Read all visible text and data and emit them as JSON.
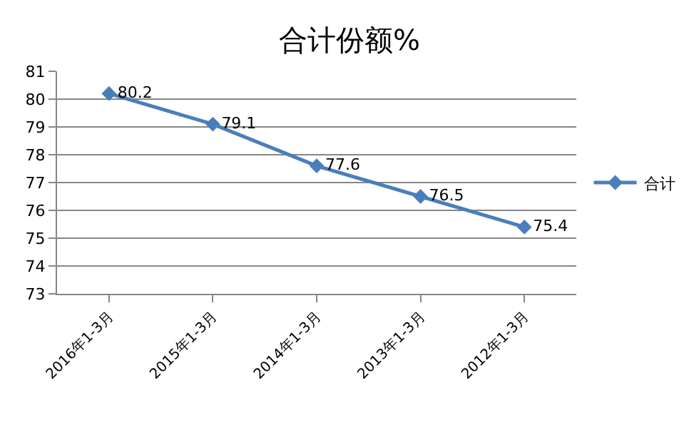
{
  "chart_data": {
    "type": "line",
    "title": "合计份额%",
    "categories": [
      "2016年1-3月",
      "2015年1-3月",
      "2014年1-3月",
      "2013年1-3月",
      "2012年1-3月"
    ],
    "series": [
      {
        "name": "合计",
        "color": "#4a7ebb",
        "values": [
          80.2,
          79.1,
          77.6,
          76.5,
          75.4
        ]
      }
    ],
    "ylim": [
      73,
      81
    ],
    "yticks": [
      73,
      74,
      75,
      76,
      77,
      78,
      79,
      80,
      81
    ],
    "grid": "y",
    "legend": "right",
    "marker": "diamond",
    "line_style": "solid",
    "data_labels": true
  }
}
